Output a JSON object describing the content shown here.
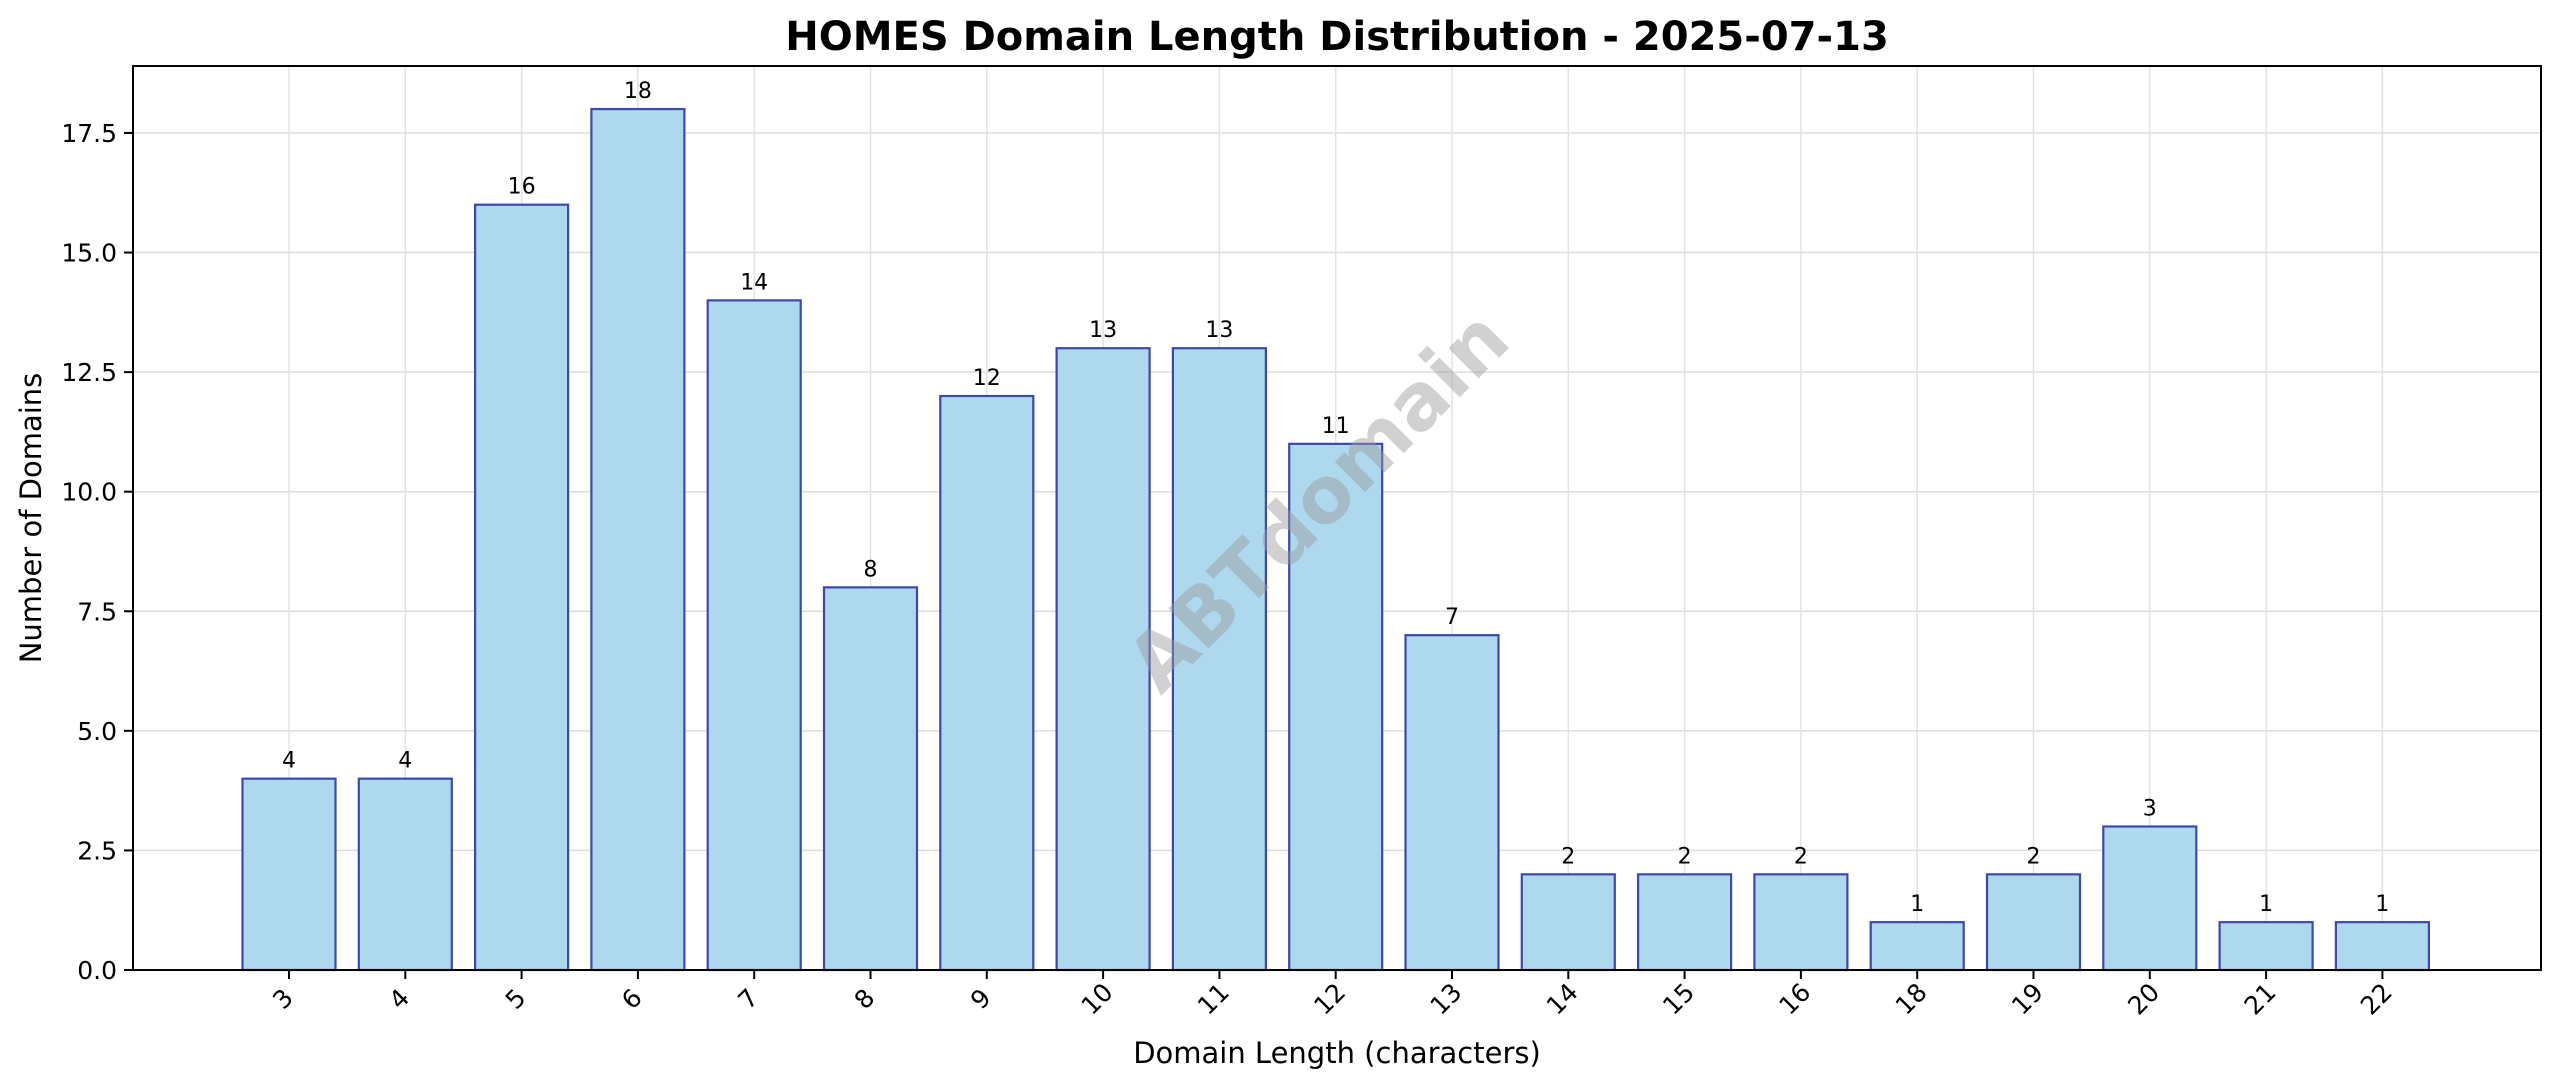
{
  "chart_data": {
    "type": "bar",
    "title": "HOMES Domain Length Distribution - 2025-07-13",
    "xlabel": "Domain Length (characters)",
    "ylabel": "Number of Domains",
    "categories": [
      "3",
      "4",
      "5",
      "6",
      "7",
      "8",
      "9",
      "10",
      "11",
      "12",
      "13",
      "14",
      "15",
      "16",
      "18",
      "19",
      "20",
      "21",
      "22"
    ],
    "values": [
      4,
      4,
      16,
      18,
      14,
      8,
      12,
      13,
      13,
      11,
      7,
      2,
      2,
      2,
      1,
      2,
      3,
      1,
      1
    ],
    "ylim": [
      0,
      18.9
    ],
    "yticks": [
      "0.0",
      "2.5",
      "5.0",
      "7.5",
      "10.0",
      "12.5",
      "15.0",
      "17.5"
    ],
    "grid": true,
    "bar_fill": "#add8ee",
    "bar_edge": "#3f48aa",
    "watermark": "ABTdomain"
  }
}
